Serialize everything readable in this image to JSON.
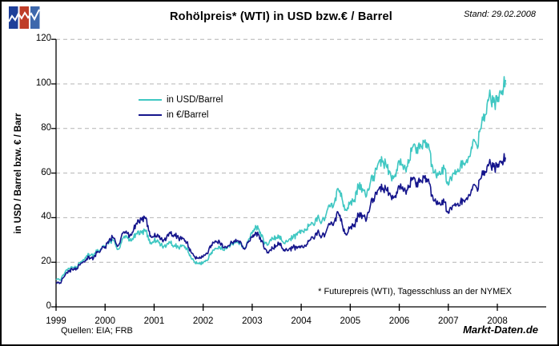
{
  "header": {
    "stand": "Stand: 29.02.2008"
  },
  "logo": {
    "name": "markt-daten-logo",
    "bar_colors": [
      "#1E3F99",
      "#BF3D28",
      "#3E68AC"
    ],
    "zigzag_color": "#ffffff"
  },
  "legend": [
    {
      "label": "in USD/Barrel",
      "color": "#3FC7C2"
    },
    {
      "label": "in €/Barrel",
      "color": "#15158C"
    }
  ],
  "footer": {
    "sources": "Quellen: EIA; FRB",
    "brand": "Markt-Daten.de"
  },
  "chart_data": {
    "type": "line",
    "title": "Rohölpreis* (WTI) in USD bzw.€ / Barrel",
    "ylabel": "in USD / Barrel bzw. € / Barr",
    "xlabel": "",
    "ylim": [
      0,
      120
    ],
    "y_ticks": [
      0,
      20,
      40,
      60,
      80,
      100,
      120
    ],
    "x_tick_labels": [
      "1999",
      "2000",
      "2001",
      "2002",
      "2003",
      "2004",
      "2005",
      "2006",
      "2007",
      "2008"
    ],
    "x_unit": "month",
    "x_start": "1999-01",
    "last_point_date": "29.02.2008",
    "grid": "dashed-horizontal",
    "grid_color": "#b4b4b4",
    "legend_position": "inside-top-left",
    "annotation": "* Futurepreis (WTI), Tagesschluss an der NYMEX",
    "series": [
      {
        "name": "in USD/Barrel",
        "color": "#3FC7C2",
        "values": [
          12.5,
          12.0,
          14.7,
          17.3,
          17.7,
          17.9,
          20.1,
          21.3,
          23.8,
          22.6,
          25.0,
          26.1,
          27.2,
          29.4,
          29.9,
          25.7,
          28.8,
          31.8,
          29.7,
          31.2,
          33.9,
          33.1,
          34.4,
          28.4,
          29.6,
          29.6,
          27.2,
          27.4,
          28.6,
          27.6,
          26.5,
          27.5,
          26.2,
          22.2,
          19.7,
          19.3,
          19.7,
          20.7,
          24.4,
          26.3,
          27.0,
          25.5,
          26.9,
          28.4,
          29.7,
          28.9,
          26.3,
          29.4,
          33.0,
          35.9,
          33.5,
          28.2,
          28.1,
          30.7,
          30.8,
          31.6,
          28.3,
          30.3,
          31.1,
          32.2,
          34.3,
          34.7,
          36.8,
          36.7,
          40.3,
          38.0,
          40.8,
          44.9,
          46.0,
          53.1,
          48.5,
          43.3,
          46.8,
          48.0,
          54.3,
          53.0,
          49.8,
          56.3,
          59.0,
          65.0,
          65.5,
          62.4,
          58.3,
          59.4,
          65.5,
          61.6,
          62.9,
          69.7,
          70.9,
          70.9,
          74.4,
          73.1,
          63.9,
          58.9,
          59.4,
          62.0,
          54.6,
          59.3,
          60.6,
          64.0,
          63.5,
          67.5,
          74.1,
          72.4,
          79.9,
          86.2,
          94.6,
          91.7,
          92.0,
          95.4,
          101.8
        ]
      },
      {
        "name": "in €/Barrel",
        "color": "#15158C",
        "values": [
          10.8,
          10.7,
          13.5,
          16.2,
          16.7,
          17.2,
          19.3,
          20.1,
          22.7,
          21.1,
          24.3,
          25.8,
          26.9,
          30.0,
          31.1,
          27.1,
          31.6,
          33.5,
          31.6,
          34.7,
          39.0,
          38.9,
          40.0,
          31.6,
          31.5,
          32.2,
          29.9,
          30.8,
          32.9,
          32.5,
          30.8,
          30.6,
          28.8,
          24.7,
          22.1,
          21.7,
          22.4,
          23.8,
          27.7,
          29.6,
          29.3,
          26.6,
          27.2,
          29.0,
          30.3,
          29.5,
          26.3,
          28.8,
          31.1,
          33.2,
          31.0,
          25.9,
          24.2,
          26.2,
          27.3,
          28.5,
          25.0,
          25.9,
          26.6,
          26.2,
          27.2,
          27.5,
          29.9,
          30.6,
          33.6,
          31.4,
          33.2,
          36.8,
          37.7,
          42.5,
          37.3,
          32.3,
          35.7,
          36.9,
          41.1,
          41.1,
          39.2,
          46.1,
          49.2,
          52.8,
          53.3,
          52.0,
          49.4,
          49.9,
          54.1,
          51.8,
          52.4,
          56.7,
          55.4,
          55.8,
          58.6,
          57.1,
          50.3,
          46.7,
          46.0,
          47.0,
          42.0,
          45.3,
          45.9,
          47.4,
          47.0,
          50.4,
          54.1,
          53.2,
          57.5,
          60.7,
          64.4,
          62.8,
          62.6,
          64.5,
          67.0
        ]
      }
    ]
  }
}
